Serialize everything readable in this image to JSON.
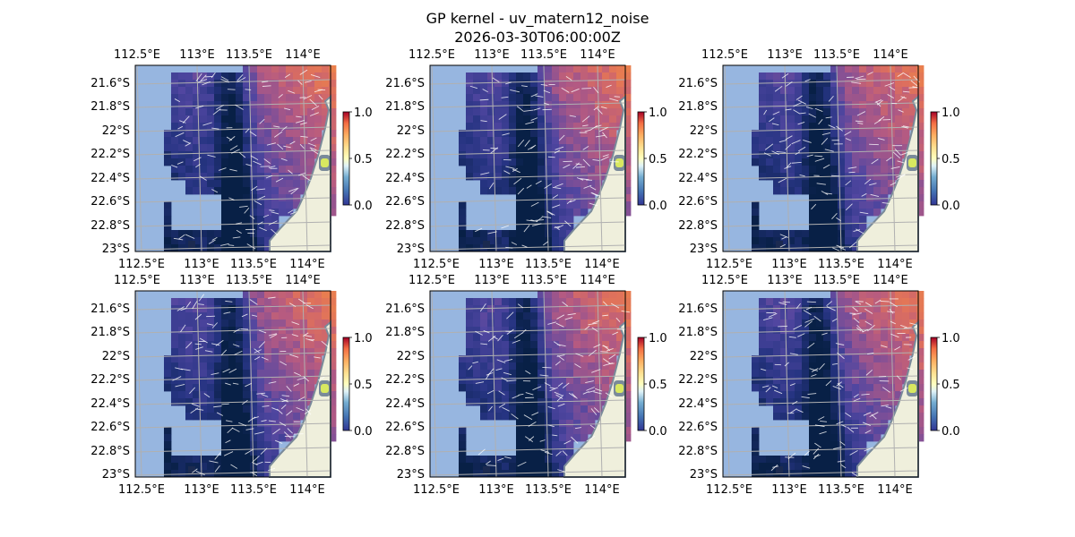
{
  "figure": {
    "title_line1": "GP kernel - uv_matern12_noise",
    "title_line2": "2026-03-30T06:00:00Z"
  },
  "axes": {
    "lon_tick_labels": [
      "112.5°E",
      "113°E",
      "113.5°E",
      "114°E"
    ],
    "lat_tick_labels": [
      "21.6°S",
      "21.8°S",
      "22°S",
      "22.2°S",
      "22.4°S",
      "22.6°S",
      "22.8°S",
      "23°S"
    ],
    "lon_range": [
      112.5,
      114.2
    ],
    "lat_range": [
      -23.0,
      -21.45
    ]
  },
  "colorbar": {
    "tick_labels": [
      "0.0",
      "0.5",
      "1.0"
    ],
    "range": [
      0.0,
      1.0
    ],
    "colormap": "RdYlBu_r"
  },
  "colors": {
    "ocean_nodata": "#97b6e0",
    "land": "#efefdc",
    "coast": "#7a8a9a",
    "grid": "#b0b0b0",
    "arrows": "#ffffff"
  },
  "panels": [
    {
      "id": "panel-1",
      "variant": 0
    },
    {
      "id": "panel-2",
      "variant": 1
    },
    {
      "id": "panel-3",
      "variant": 2
    },
    {
      "id": "panel-4",
      "variant": 3
    },
    {
      "id": "panel-5",
      "variant": 4
    },
    {
      "id": "panel-6",
      "variant": 5
    }
  ]
}
